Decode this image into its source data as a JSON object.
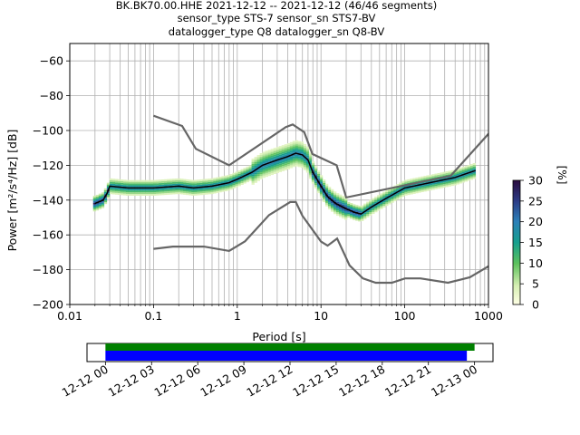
{
  "header": {
    "title_line1": "BK.BK70.00.HHE   2021-12-12 -- 2021-12-12  (46/46 segments)",
    "title_line2": "sensor_type STS-7 sensor_sn STS7-BV",
    "title_line3": "datalogger_type Q8 datalogger_sn Q8-BV"
  },
  "chart_data": [
    {
      "type": "heatmap",
      "title": "BK.BK70.00.HHE   2021-12-12 -- 2021-12-12  (46/46 segments)",
      "xlabel": "Period [s]",
      "ylabel": "Power [m²/s⁴/Hz] [dB]",
      "xscale": "log",
      "xlim": [
        0.01,
        1000
      ],
      "ylim": [
        -200,
        -50
      ],
      "grid": true,
      "xticks": [
        "0.01",
        "0.1",
        "1",
        "10",
        "100",
        "1000"
      ],
      "yticks": [
        "−60",
        "−80",
        "−100",
        "−120",
        "−140",
        "−160",
        "−180",
        "−200"
      ],
      "colorbar": {
        "label": "[%]",
        "range": [
          0,
          30
        ],
        "ticks": [
          "0",
          "5",
          "10",
          "15",
          "20",
          "25",
          "30"
        ]
      },
      "series": [
        {
          "name": "mode",
          "color": "#000000",
          "x": [
            0.02,
            0.025,
            0.028,
            0.03,
            0.05,
            0.1,
            0.2,
            0.3,
            0.5,
            0.8,
            1,
            1.5,
            2,
            3,
            4,
            5,
            6,
            7,
            8,
            10,
            12,
            15,
            20,
            25,
            30,
            40,
            60,
            100,
            200,
            400,
            700
          ],
          "y": [
            -142,
            -140,
            -136,
            -132,
            -133,
            -133,
            -132,
            -133,
            -132,
            -130,
            -128,
            -124,
            -120,
            -117,
            -115,
            -113,
            -114,
            -117,
            -124,
            -132,
            -138,
            -142,
            -145,
            -147,
            -148,
            -144,
            -139,
            -133,
            -130,
            -127,
            -123
          ]
        },
        {
          "name": "high noise model",
          "color": "#666666",
          "x": [
            0.1,
            0.22,
            0.32,
            0.8,
            3.8,
            4.6,
            6.3,
            7.9,
            15.4,
            20,
            354.8,
            10000
          ],
          "y": [
            -91.5,
            -97.4,
            -110.5,
            -120,
            -98,
            -96.5,
            -101,
            -113.5,
            -120,
            -138.5,
            -126,
            -48.5
          ]
        },
        {
          "name": "low noise model",
          "color": "#666666",
          "x": [
            0.1,
            0.17,
            0.4,
            0.8,
            1.24,
            2.4,
            4.3,
            5,
            6,
            10,
            12,
            15.6,
            21.9,
            31.6,
            45,
            70,
            101,
            154,
            328,
            600,
            1000
          ],
          "y": [
            -168,
            -166.7,
            -166.7,
            -169.2,
            -163.7,
            -148.6,
            -141.1,
            -141.1,
            -149,
            -163.8,
            -166.2,
            -162.1,
            -177.5,
            -185,
            -187.5,
            -187.5,
            -185,
            -185,
            -187.5,
            -184.4,
            -178
          ]
        }
      ]
    },
    {
      "type": "timeline",
      "xticks": [
        "12-12 00",
        "12-12 03",
        "12-12 06",
        "12-12 09",
        "12-12 12",
        "12-12 15",
        "12-12 18",
        "12-12 21",
        "12-13 00"
      ],
      "xlim_hours": [
        -1.2,
        25.2
      ],
      "bars": [
        {
          "name": "data",
          "color": "#008000",
          "start_h": 0,
          "end_h": 24.0
        },
        {
          "name": "psd",
          "color": "#0000ff",
          "start_h": 0,
          "end_h": 23.5
        }
      ]
    }
  ]
}
